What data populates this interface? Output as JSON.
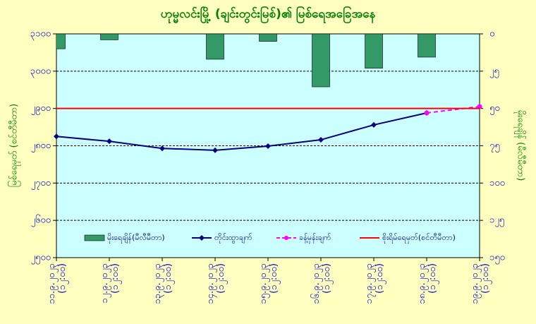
{
  "chart_data": {
    "type": "bar-line",
    "title": "ဟုမ္မလင်းမြို့ (ချင်းတွင်းမြစ်)၏ မြစ်ရေအခြေအနေ",
    "y_label": "မြစ်ရေမှတ် (စင်တီမီတာ)",
    "y2_label": "မိုးရေချိန် (မီလီမီတာ)",
    "categories": [
      "၁၁.၉.၂၀၂၃ (၁၂:၀၀)",
      "၁၂.၉.၂၀၂၃ (၁၂:၀၀)",
      "၁၃.၉.၂၀၂၃ (၁၂:၀၀)",
      "၁၄.၉.၂၀၂၃ (၁၂:၀၀)",
      "၁၅.၉.၂၀၂၃ (၁၂:၀၀)",
      "၁၆.၉.၂၀၂၃ (၁၂:၀၀)",
      "၁၇.၉.၂၀၂၃ (၁၂:၀၀)",
      "၁၈.၉.၂၀၂၃ (၁၂:၀၀)",
      "၁၉.၉.၂၀၂၃ (၁၂:၀၀)"
    ],
    "ylim": [
      2500,
      3100
    ],
    "yticks": [
      {
        "value": 2500,
        "label": "၂၅၀၀"
      },
      {
        "value": 2600,
        "label": "၂၆၀၀"
      },
      {
        "value": 2700,
        "label": "၂၇၀၀"
      },
      {
        "value": 2800,
        "label": "၂၈၀၀"
      },
      {
        "value": 2900,
        "label": "၂၉၀၀"
      },
      {
        "value": 3000,
        "label": "၃၀၀၀"
      },
      {
        "value": 3100,
        "label": "၃၁၀၀"
      }
    ],
    "y2lim": [
      150,
      0
    ],
    "y2ticks": [
      {
        "value": 0,
        "label": "၀"
      },
      {
        "value": 25,
        "label": "၂၅"
      },
      {
        "value": 50,
        "label": "၅၀"
      },
      {
        "value": 75,
        "label": "၇၅"
      },
      {
        "value": 100,
        "label": "၁၀၀"
      },
      {
        "value": 125,
        "label": "၁၂၅"
      },
      {
        "value": 150,
        "label": "၁၅၀"
      }
    ],
    "grid": true,
    "series": [
      {
        "name": "မိုးရေချိန်(မီလီမီတာ)",
        "type": "bar",
        "axis": "y2",
        "color": "#339966",
        "values": [
          10,
          4,
          null,
          17,
          5,
          35.5,
          23,
          15.6,
          null
        ]
      },
      {
        "name": "တိုင်းထွာချက်",
        "type": "line",
        "color": "#000080",
        "marker": "diamond",
        "values": [
          2825,
          2812,
          2793,
          2788,
          2799,
          2816,
          2856,
          2888,
          null
        ]
      },
      {
        "name": "ခန့်မှန်းချက်",
        "type": "line",
        "color": "#ff00ff",
        "dashed": true,
        "marker": "circle",
        "values": [
          null,
          null,
          null,
          null,
          null,
          null,
          null,
          2888,
          2905
        ]
      },
      {
        "name": "စိုးရိမ်ရေမှတ်(စင်တီမီတာ)",
        "type": "line",
        "color": "#ff0000",
        "values": [
          2900,
          2900,
          2900,
          2900,
          2900,
          2900,
          2900,
          2900,
          2900
        ]
      }
    ]
  }
}
